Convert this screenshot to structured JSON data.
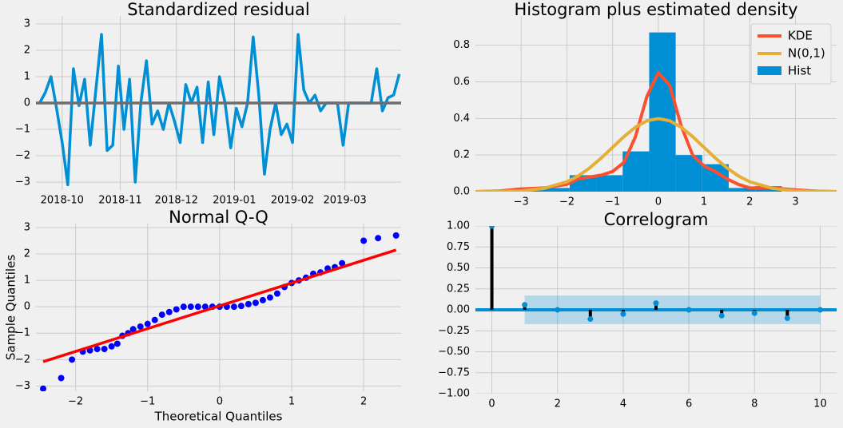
{
  "chart_data": [
    {
      "type": "line",
      "title": "Standardized residual",
      "color": "#008fd5",
      "hline": 0,
      "hline_color": "#6d6d6d",
      "grid": true,
      "x": [
        "2018-09-19",
        "2018-09-22",
        "2018-09-25",
        "2018-09-28",
        "2018-10-01",
        "2018-10-04",
        "2018-10-07",
        "2018-10-10",
        "2018-10-13",
        "2018-10-16",
        "2018-10-19",
        "2018-10-22",
        "2018-10-25",
        "2018-10-28",
        "2018-10-31",
        "2018-11-03",
        "2018-11-06",
        "2018-11-09",
        "2018-11-12",
        "2018-11-15",
        "2018-11-18",
        "2018-11-21",
        "2018-11-24",
        "2018-11-27",
        "2018-11-30",
        "2018-12-03",
        "2018-12-06",
        "2018-12-09",
        "2018-12-12",
        "2018-12-15",
        "2018-12-18",
        "2018-12-21",
        "2018-12-24",
        "2018-12-27",
        "2018-12-30",
        "2019-01-02",
        "2019-01-05",
        "2019-01-08",
        "2019-01-11",
        "2019-01-14",
        "2019-01-17",
        "2019-01-20",
        "2019-01-23",
        "2019-01-26",
        "2019-01-29",
        "2019-02-01",
        "2019-02-04",
        "2019-02-07",
        "2019-02-10",
        "2019-02-13",
        "2019-02-16",
        "2019-02-19",
        "2019-02-22",
        "2019-02-25",
        "2019-02-28",
        "2019-03-03",
        "2019-03-06",
        "2019-03-09",
        "2019-03-12",
        "2019-03-15",
        "2019-03-18",
        "2019-03-21",
        "2019-03-24",
        "2019-03-27",
        "2019-03-30"
      ],
      "values": [
        0.0,
        0.4,
        1.0,
        -0.2,
        -1.5,
        -3.1,
        1.3,
        -0.1,
        0.9,
        -1.6,
        0.5,
        2.6,
        -1.8,
        -1.6,
        1.4,
        -1.0,
        0.9,
        -3.0,
        0.0,
        1.6,
        -0.8,
        -0.3,
        -1.0,
        0.0,
        -0.7,
        -1.5,
        0.7,
        0.0,
        0.6,
        -1.5,
        0.8,
        -1.2,
        1.0,
        0.0,
        -1.7,
        -0.2,
        -0.9,
        0.0,
        2.5,
        0.3,
        -2.7,
        -1.0,
        0.0,
        -1.2,
        -0.8,
        -1.5,
        2.6,
        0.5,
        0.0,
        0.3,
        -0.3,
        0.0,
        0.0,
        0.0,
        -1.6,
        0.0,
        0.0,
        0.0,
        0.0,
        0.0,
        1.3,
        -0.3,
        0.2,
        0.3,
        1.1
      ],
      "xlim": [
        "2018-09-17",
        "2019-03-31"
      ],
      "xticks": [
        "2018-10",
        "2018-11",
        "2018-12",
        "2019-01",
        "2019-02",
        "2019-03"
      ],
      "ylim": [
        -3.3,
        3.3
      ],
      "yticks": [
        {
          "value": -3,
          "label": "−3"
        },
        {
          "value": -2,
          "label": "−2"
        },
        {
          "value": -1,
          "label": "−1"
        },
        0,
        1,
        2,
        3
      ]
    },
    {
      "type": "histogram",
      "title": "Histogram plus estimated density",
      "grid": true,
      "legend": "upper right",
      "series": [
        {
          "name": "KDE",
          "color": "#fc4f30",
          "x": [
            -4,
            -3.5,
            -3,
            -2.5,
            -2,
            -1.75,
            -1.5,
            -1.25,
            -1,
            -0.75,
            -0.5,
            -0.25,
            0,
            0.25,
            0.5,
            0.75,
            1,
            1.25,
            1.5,
            1.75,
            2,
            2.5,
            3,
            3.5,
            3.9
          ],
          "values": [
            0,
            0.003,
            0.015,
            0.02,
            0.04,
            0.07,
            0.08,
            0.09,
            0.11,
            0.16,
            0.3,
            0.52,
            0.65,
            0.58,
            0.36,
            0.2,
            0.14,
            0.11,
            0.07,
            0.04,
            0.02,
            0.02,
            0.01,
            0.002,
            0
          ]
        },
        {
          "name": "N(0,1)",
          "color": "#e5ae38",
          "x": [
            -4,
            -3.5,
            -3,
            -2.5,
            -2,
            -1.75,
            -1.5,
            -1.25,
            -1,
            -0.75,
            -0.5,
            -0.25,
            0,
            0.25,
            0.5,
            0.75,
            1,
            1.25,
            1.5,
            1.75,
            2,
            2.5,
            3,
            3.5,
            3.9
          ],
          "values": [
            0,
            0.001,
            0.004,
            0.018,
            0.054,
            0.086,
            0.13,
            0.183,
            0.242,
            0.301,
            0.352,
            0.387,
            0.399,
            0.387,
            0.352,
            0.301,
            0.242,
            0.183,
            0.13,
            0.086,
            0.054,
            0.018,
            0.004,
            0.001,
            0
          ]
        },
        {
          "name": "Hist",
          "color": "#008fd5",
          "bins": [
            -3.1,
            -2.52,
            -1.94,
            -1.36,
            -0.78,
            -0.2,
            0.38,
            0.96,
            1.54,
            2.12,
            2.7
          ],
          "values": [
            0.02,
            0.02,
            0.09,
            0.09,
            0.22,
            0.87,
            0.2,
            0.15,
            0.02,
            0.03
          ]
        }
      ],
      "xlim": [
        -4,
        3.9
      ],
      "xticks": [
        {
          "value": -3,
          "label": "−3"
        },
        {
          "value": -2,
          "label": "−2"
        },
        {
          "value": -1,
          "label": "−1"
        },
        0,
        1,
        2,
        3
      ],
      "ylim": [
        0,
        0.96
      ],
      "yticks": [
        {
          "value": 0,
          "label": "0.0"
        },
        0.2,
        0.4,
        0.6,
        0.8
      ]
    },
    {
      "type": "scatter",
      "title": "Normal Q-Q",
      "xlabel": "Theoretical Quantiles",
      "ylabel": "Sample Quantiles",
      "color": "#0000ff",
      "grid": true,
      "x": [
        -2.45,
        -2.2,
        -2.05,
        -1.9,
        -1.8,
        -1.7,
        -1.6,
        -1.5,
        -1.42,
        -1.35,
        -1.27,
        -1.2,
        -1.1,
        -1.0,
        -0.9,
        -0.8,
        -0.7,
        -0.6,
        -0.5,
        -0.4,
        -0.3,
        -0.2,
        -0.1,
        0,
        0.1,
        0.2,
        0.3,
        0.4,
        0.5,
        0.6,
        0.7,
        0.8,
        0.9,
        1.0,
        1.1,
        1.2,
        1.3,
        1.4,
        1.5,
        1.6,
        1.7,
        2.0,
        2.2,
        2.45
      ],
      "values": [
        -3.1,
        -2.7,
        -2.0,
        -1.7,
        -1.65,
        -1.6,
        -1.6,
        -1.5,
        -1.4,
        -1.1,
        -1.0,
        -0.85,
        -0.75,
        -0.65,
        -0.5,
        -0.3,
        -0.2,
        -0.1,
        0,
        0,
        0,
        0,
        0,
        0,
        0,
        0,
        0.03,
        0.1,
        0.15,
        0.25,
        0.35,
        0.5,
        0.75,
        0.9,
        1.0,
        1.1,
        1.25,
        1.3,
        1.45,
        1.5,
        1.65,
        2.5,
        2.6,
        2.7
      ],
      "fit_line": {
        "color": "#ff0000",
        "x": [
          -2.45,
          2.45
        ],
        "values": [
          -2.08,
          2.15
        ]
      },
      "xlim": [
        -2.55,
        2.52
      ],
      "xticks": [
        {
          "value": -2,
          "label": "−2"
        },
        {
          "value": -1,
          "label": "−1"
        },
        0,
        1,
        2
      ],
      "ylim": [
        -3.2,
        3.15
      ],
      "yticks": [
        {
          "value": -3,
          "label": "−3"
        },
        {
          "value": -2,
          "label": "−2"
        },
        {
          "value": -1,
          "label": "−1"
        },
        0,
        1,
        2,
        3
      ]
    },
    {
      "type": "stem",
      "title": "Correlogram",
      "color": "#000000",
      "marker_color": "#008fd5",
      "hline": 0,
      "hline_color": "#008fd5",
      "grid": true,
      "x": [
        0,
        1,
        2,
        3,
        4,
        5,
        6,
        7,
        8,
        9,
        10
      ],
      "values": [
        1,
        0.06,
        0,
        -0.11,
        -0.05,
        0.08,
        0,
        -0.07,
        -0.04,
        -0.1,
        0
      ],
      "conf_band": [
        -0.17,
        0.17
      ],
      "band_color": "#008fd5",
      "xlim": [
        -0.5,
        10.5
      ],
      "xticks": [
        0,
        2,
        4,
        6,
        8,
        10
      ],
      "ylim": [
        -1,
        1
      ],
      "yticks": [
        {
          "value": -1,
          "label": "−1.00"
        },
        {
          "value": -0.75,
          "label": "−0.75"
        },
        {
          "value": -0.5,
          "label": "−0.50"
        },
        {
          "value": -0.25,
          "label": "−0.25"
        },
        {
          "value": 0,
          "label": "0.00"
        },
        {
          "value": 0.25,
          "label": "0.25"
        },
        {
          "value": 0.5,
          "label": "0.50"
        },
        {
          "value": 0.75,
          "label": "0.75"
        },
        {
          "value": 1,
          "label": "1.00"
        }
      ]
    }
  ]
}
